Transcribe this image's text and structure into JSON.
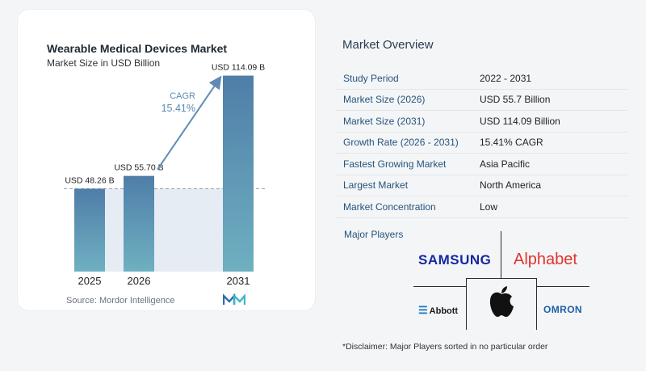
{
  "chart_data": {
    "type": "bar",
    "title": "Wearable Medical Devices Market",
    "subtitle": "Market Size in USD Billion",
    "categories": [
      "2025",
      "2026",
      "2031"
    ],
    "values": [
      48.26,
      55.7,
      114.09
    ],
    "value_labels": [
      "USD 48.26 B",
      "USD 55.70 B",
      "USD 114.09 B"
    ],
    "ylim": [
      0,
      120
    ],
    "annotation": {
      "label": "CAGR",
      "value": "15.41%"
    },
    "reference_line": 48.26,
    "grid": false,
    "colors": {
      "bar_top": "#4f7ea8",
      "bar_bottom": "#6fb0c1",
      "band": "#e6ecf4",
      "arrow": "#5e8cb6",
      "cagr_text": "#5d8ab5"
    }
  },
  "source": "Source:  Mordor Intelligence",
  "overview": {
    "title": "Market Overview",
    "rows": [
      {
        "key": "Study Period",
        "value": "2022 - 2031"
      },
      {
        "key": "Market Size (2026)",
        "value": "USD 55.7 Billion"
      },
      {
        "key": "Market Size (2031)",
        "value": "USD 114.09 Billion"
      },
      {
        "key": "Growth Rate (2026 - 2031)",
        "value": "15.41% CAGR"
      },
      {
        "key": "Fastest Growing Market",
        "value": "Asia Pacific"
      },
      {
        "key": "Largest Market",
        "value": "North America"
      },
      {
        "key": "Market Concentration",
        "value": "Low"
      }
    ]
  },
  "players": {
    "label": "Major Players",
    "logos": {
      "samsung": "SAMSUNG",
      "alphabet": "Alphabet",
      "abbott": "Abbott",
      "omron": "OMRON",
      "apple": "apple-logo-icon"
    }
  },
  "disclaimer": "*Disclaimer: Major Players sorted in no particular order"
}
